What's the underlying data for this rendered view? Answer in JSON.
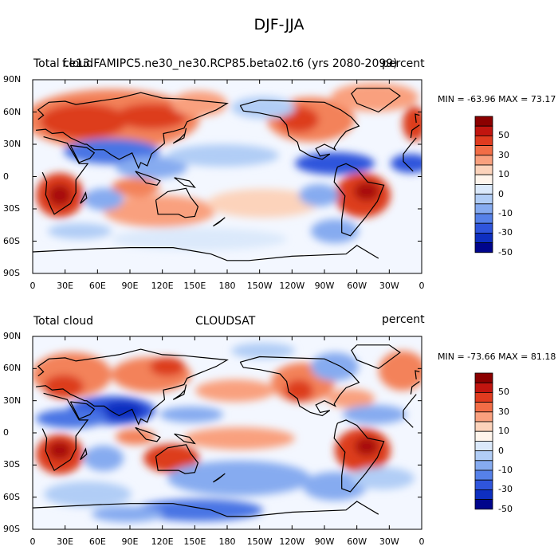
{
  "title": "DJF-JJA",
  "panels": [
    {
      "left_label": "Total cloud",
      "center_label": "f.e13.FAMIPC5.ne30_ne30.RCP85.beta02.t6 (yrs 2080-2099)",
      "right_label": "percent",
      "stats": "MIN = -63.96 MAX =  73.17"
    },
    {
      "left_label": "Total cloud",
      "center_label": "CLOUDSAT",
      "right_label": "percent",
      "stats": "MIN = -73.66 MAX =  81.18"
    }
  ],
  "lat_ticks": [
    "90N",
    "60N",
    "30N",
    "0",
    "30S",
    "60S",
    "90S"
  ],
  "lon_ticks": [
    "0",
    "30E",
    "60E",
    "90E",
    "120E",
    "150E",
    "180",
    "150W",
    "120W",
    "90W",
    "60W",
    "30W",
    "0"
  ],
  "colorbar": {
    "labels": [
      "50",
      "30",
      "10",
      "0",
      "-10",
      "-30",
      "-50"
    ],
    "colors": [
      "#8b0000",
      "#c1150f",
      "#e03b1f",
      "#f26d46",
      "#f9a07e",
      "#fcd3bb",
      "#fff5ec",
      "#dbe9fb",
      "#b1cdf6",
      "#86abf0",
      "#5681e9",
      "#2f55dc",
      "#0e2fc0",
      "#00058c"
    ]
  },
  "fill_colors": {
    "ocean_neutral": "#f3f7ff",
    "red_light": "#fcc9ad",
    "red_mid": "#f3825a",
    "red_strong": "#dd3c1f",
    "red_dark": "#a81008",
    "blue_light": "#c6dbf8",
    "blue_mid": "#8fb4f2",
    "blue_strong": "#4a74e4",
    "blue_dark": "#1633b5"
  }
}
